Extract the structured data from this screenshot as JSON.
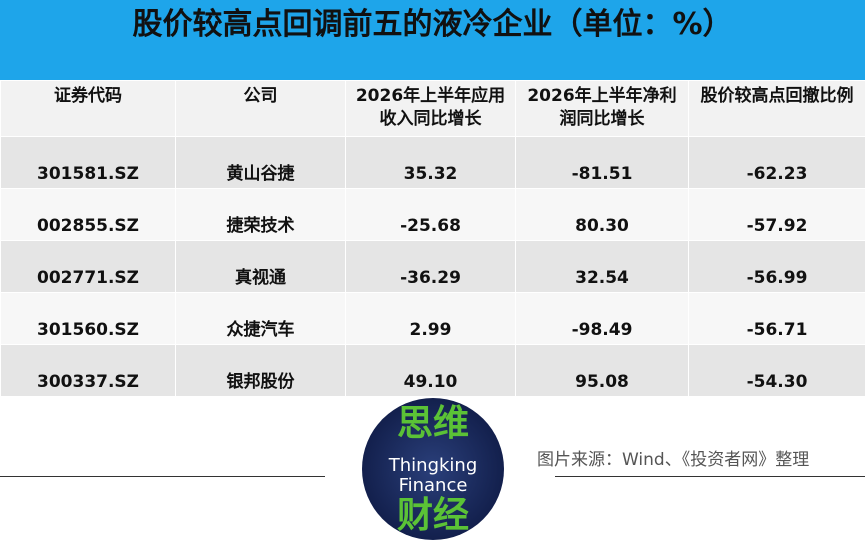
{
  "header": {
    "title": "股价较高点回调前五的液冷企业（单位：%）"
  },
  "table": {
    "headers": [
      "证券代码",
      "公司",
      "2026年上半年应用收入同比增长",
      "2026年上半年净利润同比增长",
      "股价较高点回撤比例"
    ],
    "rows": [
      [
        "301581.SZ",
        "黄山谷捷",
        "35.32",
        "-81.51",
        "-62.23"
      ],
      [
        "002855.SZ",
        "捷荣技术",
        "-25.68",
        "80.30",
        "-57.92"
      ],
      [
        "002771.SZ",
        "真视通",
        "-36.29",
        "32.54",
        "-56.99"
      ],
      [
        "301560.SZ",
        "众捷汽车",
        "2.99",
        "-98.49",
        "-56.71"
      ],
      [
        "300337.SZ",
        "银邦股份",
        "49.10",
        "95.08",
        "-54.30"
      ]
    ]
  },
  "logo": {
    "top": "思维",
    "line1": "Thingking",
    "line2": "Finance",
    "bottom": "财经"
  },
  "footer": {
    "source": "图片来源：Wind、《投资者网》整理"
  }
}
